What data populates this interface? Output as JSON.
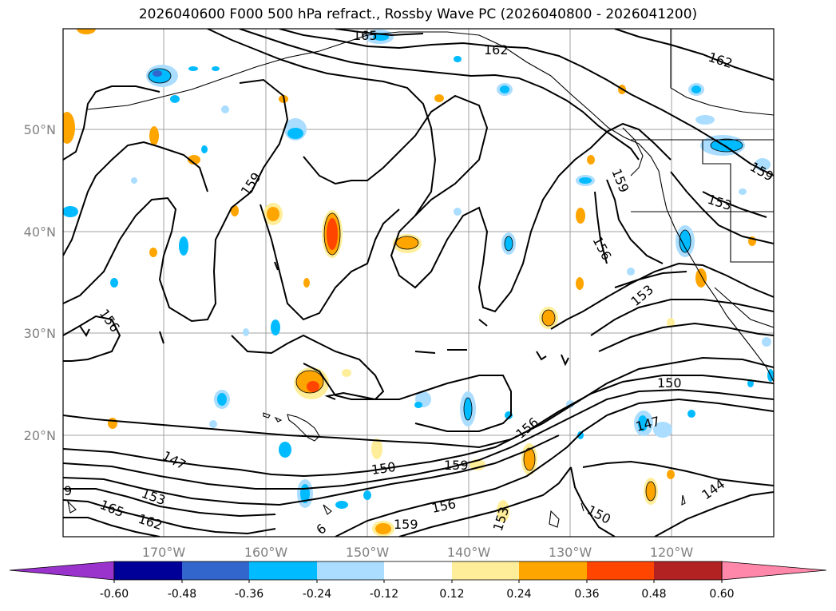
{
  "title": "2026040600 F000 500 hPa refract., Rossby Wave PC (2026040800 - 2026041200)",
  "map": {
    "lon_labels": [
      "170°W",
      "160°W",
      "150°W",
      "140°W",
      "130°W",
      "120°W"
    ],
    "lat_labels": [
      "50°N",
      "40°N",
      "30°N",
      "20°N"
    ],
    "contour_labels": [
      "165",
      "162",
      "162",
      "159",
      "159",
      "153",
      "159",
      "156",
      "156",
      "153",
      "150",
      "147",
      "156",
      "159",
      "150",
      "147",
      "153",
      "165",
      "162",
      "156",
      "153",
      "159",
      "150",
      "144",
      "9",
      "6"
    ]
  },
  "colorbar": {
    "ticks": [
      "-0.60",
      "-0.48",
      "-0.36",
      "-0.24",
      "-0.12",
      "0.12",
      "0.24",
      "0.36",
      "0.48",
      "0.60"
    ],
    "colors": [
      "#9933cc",
      "#000099",
      "#3366cc",
      "#00bbff",
      "#aaddff",
      "#ffffff",
      "#ffee99",
      "#ffa500",
      "#ff4500",
      "#b22222",
      "#ff88aa"
    ]
  }
}
